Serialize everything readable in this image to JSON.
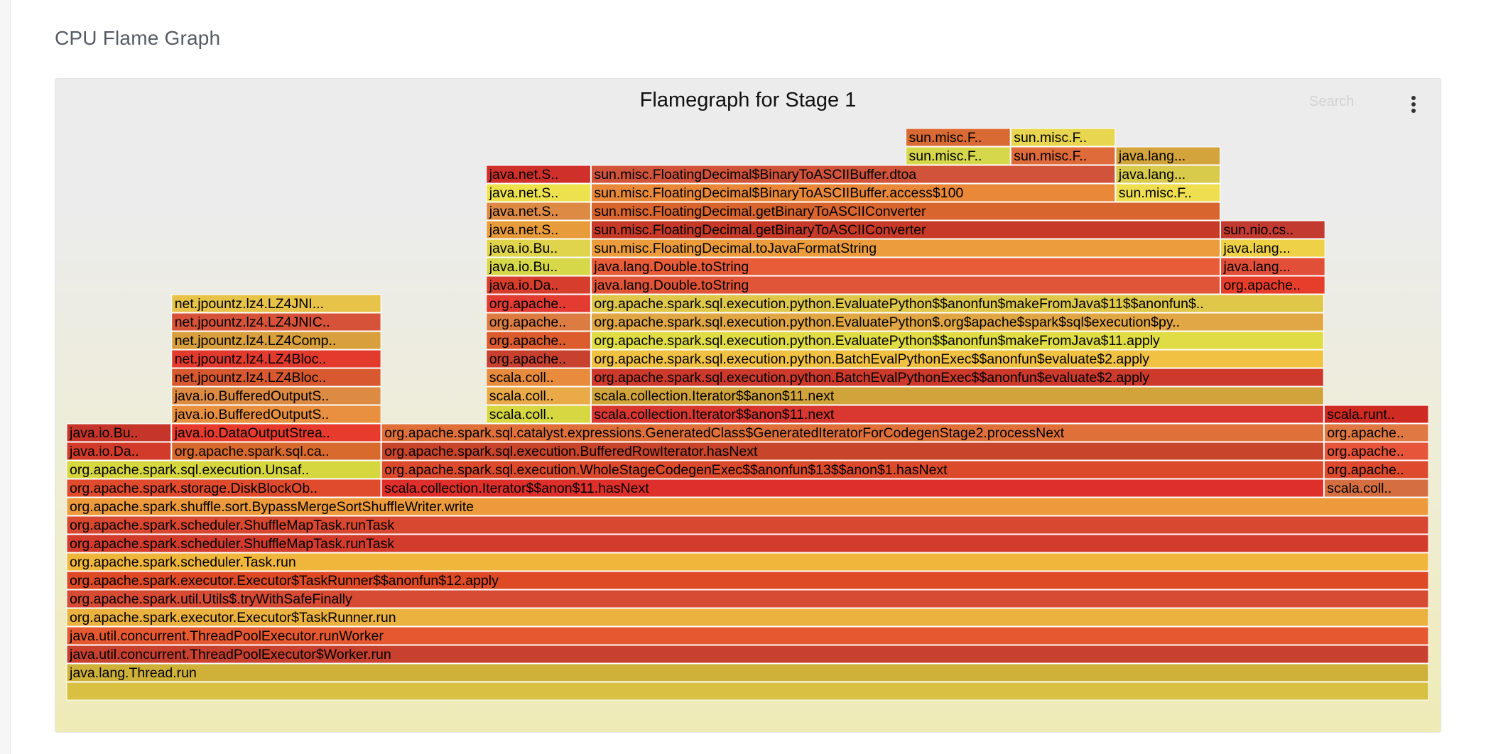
{
  "page": {
    "section_title": "CPU Flame Graph"
  },
  "toolbar": {
    "search_placeholder": "Search",
    "menu_icon": "more-vertical-icon"
  },
  "chart_data": {
    "type": "flamegraph",
    "title": "Flamegraph for Stage 1",
    "x_total": 100,
    "color_scheme": "hot",
    "frames": [
      {
        "level": 0,
        "start": 0,
        "width": 100,
        "label": "",
        "color": "#d8c042"
      },
      {
        "level": 1,
        "start": 0,
        "width": 100,
        "label": "java.lang.Thread.run",
        "color": "#cfb13a"
      },
      {
        "level": 2,
        "start": 0,
        "width": 100,
        "label": "java.util.concurrent.ThreadPoolExecutor$Worker.run",
        "color": "#c8402e"
      },
      {
        "level": 3,
        "start": 0,
        "width": 100,
        "label": "java.util.concurrent.ThreadPoolExecutor.runWorker",
        "color": "#e6582f"
      },
      {
        "level": 4,
        "start": 0,
        "width": 100,
        "label": "org.apache.spark.executor.Executor$TaskRunner.run",
        "color": "#ecb23f"
      },
      {
        "level": 5,
        "start": 0,
        "width": 100,
        "label": "org.apache.spark.util.Utils$.tryWithSafeFinally",
        "color": "#d74a33"
      },
      {
        "level": 6,
        "start": 0,
        "width": 100,
        "label": "org.apache.spark.executor.Executor$TaskRunner$$anonfun$12.apply",
        "color": "#df4a26"
      },
      {
        "level": 7,
        "start": 0,
        "width": 100,
        "label": "org.apache.spark.scheduler.Task.run",
        "color": "#f0b53b"
      },
      {
        "level": 8,
        "start": 0,
        "width": 100,
        "label": "org.apache.spark.scheduler.ShuffleMapTask.runTask",
        "color": "#d33c2c"
      },
      {
        "level": 9,
        "start": 0,
        "width": 100,
        "label": "org.apache.spark.scheduler.ShuffleMapTask.runTask",
        "color": "#d8472f"
      },
      {
        "level": 10,
        "start": 0,
        "width": 100,
        "label": "org.apache.spark.shuffle.sort.BypassMergeSortShuffleWriter.write",
        "color": "#ec9a3b"
      },
      {
        "level": 11,
        "start": 0,
        "width": 23.1,
        "label": "org.apache.spark.storage.DiskBlockOb..",
        "color": "#e04a2d"
      },
      {
        "level": 11,
        "start": 23.1,
        "width": 69.2,
        "label": "scala.collection.Iterator$$anon$11.hasNext",
        "color": "#df2f2a"
      },
      {
        "level": 11,
        "start": 92.3,
        "width": 7.7,
        "label": "scala.coll..",
        "color": "#d56f42"
      },
      {
        "level": 12,
        "start": 0,
        "width": 23.1,
        "label": "org.apache.spark.sql.execution.Unsaf..",
        "color": "#d6d73f"
      },
      {
        "level": 12,
        "start": 23.1,
        "width": 69.2,
        "label": "org.apache.spark.sql.execution.WholeStageCodegenExec$$anonfun$13$$anon$1.hasNext",
        "color": "#dc4a2c"
      },
      {
        "level": 12,
        "start": 92.3,
        "width": 7.7,
        "label": "org.apache..",
        "color": "#dd4a2e"
      },
      {
        "level": 13,
        "start": 0,
        "width": 7.7,
        "label": "java.io.Da..",
        "color": "#d23b2a"
      },
      {
        "level": 13,
        "start": 7.7,
        "width": 15.4,
        "label": "org.apache.spark.sql.ca..",
        "color": "#d96a2d"
      },
      {
        "level": 13,
        "start": 23.1,
        "width": 69.2,
        "label": "org.apache.spark.sql.execution.BufferedRowIterator.hasNext",
        "color": "#c8442a"
      },
      {
        "level": 13,
        "start": 92.3,
        "width": 7.7,
        "label": "org.apache..",
        "color": "#e6553a"
      },
      {
        "level": 14,
        "start": 0,
        "width": 7.7,
        "label": "java.io.Bu..",
        "color": "#c5352a"
      },
      {
        "level": 14,
        "start": 7.7,
        "width": 15.4,
        "label": "java.io.DataOutputStrea..",
        "color": "#e63b2d"
      },
      {
        "level": 14,
        "start": 23.1,
        "width": 69.2,
        "label": "org.apache.spark.sql.catalyst.expressions.GeneratedClass$GeneratedIteratorForCodegenStage2.processNext",
        "color": "#df7039"
      },
      {
        "level": 14,
        "start": 92.3,
        "width": 7.7,
        "label": "org.apache..",
        "color": "#df7843"
      },
      {
        "level": 15,
        "start": 7.7,
        "width": 15.4,
        "label": "java.io.BufferedOutputS..",
        "color": "#e8903f"
      },
      {
        "level": 15,
        "start": 30.8,
        "width": 7.7,
        "label": "scala.coll..",
        "color": "#d6d741"
      },
      {
        "level": 15,
        "start": 38.5,
        "width": 53.8,
        "label": "scala.collection.Iterator$$anon$11.next",
        "color": "#d93830"
      },
      {
        "level": 15,
        "start": 92.3,
        "width": 7.7,
        "label": "scala.runt..",
        "color": "#cf2b22"
      },
      {
        "level": 16,
        "start": 7.7,
        "width": 15.4,
        "label": "java.io.BufferedOutputS..",
        "color": "#dd8a42"
      },
      {
        "level": 16,
        "start": 30.8,
        "width": 7.7,
        "label": "scala.coll..",
        "color": "#eaaa48"
      },
      {
        "level": 16,
        "start": 38.5,
        "width": 53.8,
        "label": "scala.collection.Iterator$$anon$11.next",
        "color": "#d1a33b"
      },
      {
        "level": 17,
        "start": 7.7,
        "width": 15.4,
        "label": "net.jpountz.lz4.LZ4Bloc..",
        "color": "#d8592f"
      },
      {
        "level": 17,
        "start": 30.8,
        "width": 7.7,
        "label": "scala.coll..",
        "color": "#e88b3d"
      },
      {
        "level": 17,
        "start": 38.5,
        "width": 53.8,
        "label": "org.apache.spark.sql.execution.python.BatchEvalPythonExec$$anonfun$evaluate$2.apply",
        "color": "#cd3a2c"
      },
      {
        "level": 18,
        "start": 7.7,
        "width": 15.4,
        "label": "net.jpountz.lz4.LZ4Bloc..",
        "color": "#e23a2d"
      },
      {
        "level": 18,
        "start": 30.8,
        "width": 7.7,
        "label": "org.apache..",
        "color": "#c8402e"
      },
      {
        "level": 18,
        "start": 38.5,
        "width": 53.8,
        "label": "org.apache.spark.sql.execution.python.BatchEvalPythonExec$$anonfun$evaluate$2.apply",
        "color": "#f0c142"
      },
      {
        "level": 19,
        "start": 7.7,
        "width": 15.4,
        "label": "net.jpountz.lz4.LZ4Comp..",
        "color": "#d89f3c"
      },
      {
        "level": 19,
        "start": 30.8,
        "width": 7.7,
        "label": "org.apache..",
        "color": "#dc5c2e"
      },
      {
        "level": 19,
        "start": 38.5,
        "width": 53.8,
        "label": "org.apache.spark.sql.execution.python.EvaluatePython$$anonfun$makeFromJava$11.apply",
        "color": "#dfdc45"
      },
      {
        "level": 20,
        "start": 7.7,
        "width": 15.4,
        "label": "net.jpountz.lz4.LZ4JNIC..",
        "color": "#d6533a"
      },
      {
        "level": 20,
        "start": 30.8,
        "width": 7.7,
        "label": "org.apache..",
        "color": "#dc7c42"
      },
      {
        "level": 20,
        "start": 38.5,
        "width": 53.8,
        "label": "org.apache.spark.sql.execution.python.EvaluatePython$.org$apache$spark$sql$execution$py..",
        "color": "#e0a744"
      },
      {
        "level": 21,
        "start": 7.7,
        "width": 15.4,
        "label": "net.jpountz.lz4.LZ4JNI...",
        "color": "#e7c34a"
      },
      {
        "level": 21,
        "start": 30.8,
        "width": 7.7,
        "label": "org.apache..",
        "color": "#e33b32"
      },
      {
        "level": 21,
        "start": 38.5,
        "width": 53.8,
        "label": "org.apache.spark.sql.execution.python.EvaluatePython$$anonfun$makeFromJava$11$$anonfun$..",
        "color": "#dfc74a"
      },
      {
        "level": 22,
        "start": 30.8,
        "width": 7.7,
        "label": "java.io.Da..",
        "color": "#d63d2d"
      },
      {
        "level": 22,
        "start": 38.5,
        "width": 46.2,
        "label": "java.lang.Double.toString",
        "color": "#e05537"
      },
      {
        "level": 22,
        "start": 84.7,
        "width": 7.7,
        "label": "org.apache..",
        "color": "#e73e2b"
      },
      {
        "level": 23,
        "start": 30.8,
        "width": 7.7,
        "label": "java.io.Bu..",
        "color": "#d7d74a"
      },
      {
        "level": 23,
        "start": 38.5,
        "width": 46.2,
        "label": "java.lang.Double.toString",
        "color": "#e85c38"
      },
      {
        "level": 23,
        "start": 84.7,
        "width": 7.7,
        "label": "java.lang...",
        "color": "#e24f38"
      },
      {
        "level": 24,
        "start": 30.8,
        "width": 7.7,
        "label": "java.io.Bu..",
        "color": "#dfd44b"
      },
      {
        "level": 24,
        "start": 38.5,
        "width": 46.2,
        "label": "sun.misc.FloatingDecimal.toJavaFormatString",
        "color": "#ec9c3c"
      },
      {
        "level": 24,
        "start": 84.7,
        "width": 7.7,
        "label": "java.lang...",
        "color": "#efd147"
      },
      {
        "level": 25,
        "start": 30.8,
        "width": 7.7,
        "label": "java.net.S..",
        "color": "#e89b3a"
      },
      {
        "level": 25,
        "start": 38.5,
        "width": 46.2,
        "label": "sun.misc.FloatingDecimal.getBinaryToASCIIConverter",
        "color": "#c73a27"
      },
      {
        "level": 25,
        "start": 84.7,
        "width": 7.7,
        "label": "sun.nio.cs..",
        "color": "#c23a30"
      },
      {
        "level": 26,
        "start": 30.8,
        "width": 7.7,
        "label": "java.net.S..",
        "color": "#dd8a45"
      },
      {
        "level": 26,
        "start": 38.5,
        "width": 46.2,
        "label": "sun.misc.FloatingDecimal.getBinaryToASCIIConverter",
        "color": "#d9652e"
      },
      {
        "level": 27,
        "start": 30.8,
        "width": 7.7,
        "label": "java.net.S..",
        "color": "#ede24d"
      },
      {
        "level": 27,
        "start": 38.5,
        "width": 38.5,
        "label": "sun.misc.FloatingDecimal$BinaryToASCIIBuffer.access$100",
        "color": "#e98839"
      },
      {
        "level": 27,
        "start": 77.0,
        "width": 7.7,
        "label": "sun.misc.F..",
        "color": "#eede50"
      },
      {
        "level": 28,
        "start": 30.8,
        "width": 7.7,
        "label": "java.net.S..",
        "color": "#d0302a"
      },
      {
        "level": 28,
        "start": 38.5,
        "width": 38.5,
        "label": "sun.misc.FloatingDecimal$BinaryToASCIIBuffer.dtoa",
        "color": "#d0533a"
      },
      {
        "level": 28,
        "start": 77.0,
        "width": 7.7,
        "label": "java.lang...",
        "color": "#d8ca4a"
      },
      {
        "level": 29,
        "start": 61.6,
        "width": 7.7,
        "label": "sun.misc.F..",
        "color": "#d7d74b"
      },
      {
        "level": 29,
        "start": 69.3,
        "width": 7.7,
        "label": "sun.misc.F..",
        "color": "#df6a3a"
      },
      {
        "level": 29,
        "start": 77.0,
        "width": 7.7,
        "label": "java.lang...",
        "color": "#d4a43c"
      },
      {
        "level": 30,
        "start": 61.6,
        "width": 7.7,
        "label": "sun.misc.F..",
        "color": "#d96a33"
      },
      {
        "level": 30,
        "start": 69.3,
        "width": 7.7,
        "label": "sun.misc.F..",
        "color": "#e9d650"
      }
    ]
  }
}
